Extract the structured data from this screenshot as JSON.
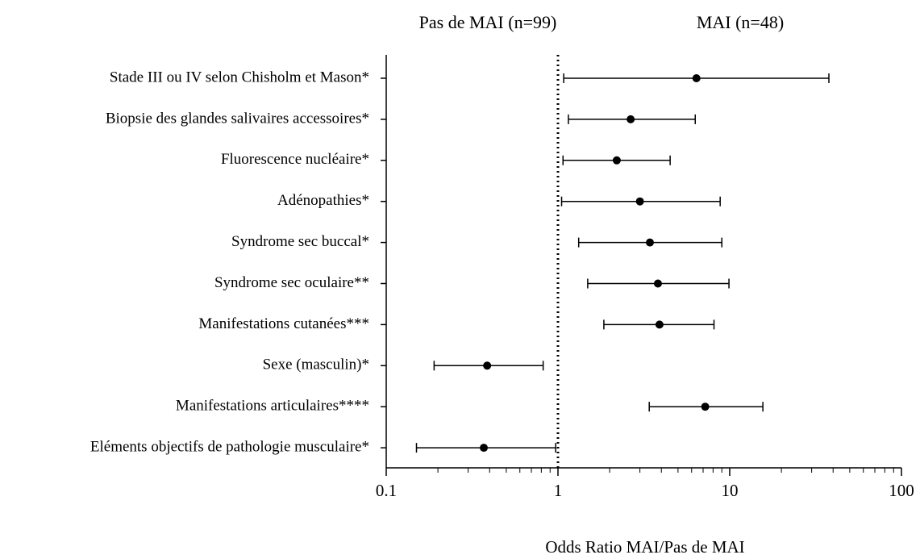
{
  "chart_data": {
    "type": "forest",
    "header_left": "Pas de MAI (n=99)",
    "header_right": "MAI (n=48)",
    "x_label": "Odds Ratio MAI/Pas de  MAI",
    "categories": [
      "Stade III ou IV selon Chisholm et Mason*",
      "Biopsie des glandes salivaires accessoires*",
      "Fluorescence nucléaire*",
      "Adénopathies*",
      "Syndrome sec buccal*",
      "Syndrome sec oculaire**",
      "Manifestations cutanées***",
      "Sexe (masculin)*",
      "Manifestations articulaires****",
      "Eléments objectifs de pathologie musculaire*"
    ],
    "values": [
      6.4,
      2.65,
      2.2,
      3.0,
      3.43,
      3.82,
      3.9,
      0.387,
      7.2,
      0.37
    ],
    "lower": [
      1.08,
      1.15,
      1.07,
      1.05,
      1.32,
      1.49,
      1.85,
      0.19,
      3.4,
      0.15
    ],
    "upper": [
      37.8,
      6.3,
      4.5,
      8.8,
      9.0,
      9.9,
      8.1,
      0.82,
      15.6,
      0.97
    ],
    "color": "#000000",
    "xscale": "log",
    "xlim": [
      0.1,
      100
    ],
    "xticks": [
      0.1,
      1,
      10,
      100
    ],
    "minor_ticks": true,
    "reference_line": 1
  }
}
